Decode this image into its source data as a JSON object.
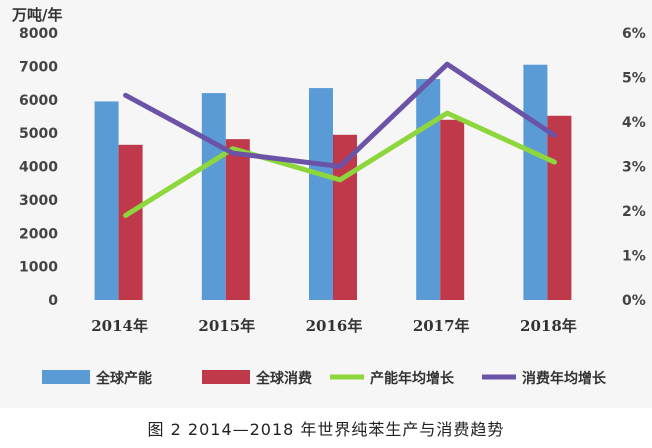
{
  "chart_data": {
    "type": "bar",
    "categories": [
      "2014年",
      "2015年",
      "2016年",
      "2017年",
      "2018年"
    ],
    "series": [
      {
        "name": "全球产能",
        "type": "bar",
        "axis": "left",
        "color": "#5b9bd5",
        "values": [
          5950,
          6200,
          6350,
          6620,
          7050
        ]
      },
      {
        "name": "全球消费",
        "type": "bar",
        "axis": "left",
        "color": "#c0394b",
        "values": [
          4650,
          4820,
          4950,
          5400,
          5520
        ]
      },
      {
        "name": "产能年均增长",
        "type": "line",
        "axis": "right",
        "color": "#8dd63b",
        "values": [
          1.9,
          3.4,
          2.7,
          4.2,
          3.1
        ]
      },
      {
        "name": "消费年均增长",
        "type": "line",
        "axis": "right",
        "color": "#6b54a8",
        "values": [
          4.6,
          3.3,
          3.0,
          5.3,
          3.7
        ]
      }
    ],
    "y_left": {
      "label": "万吨/年",
      "ylim": [
        0,
        8000
      ],
      "ticks": [
        "0",
        "1000",
        "2000",
        "3000",
        "4000",
        "5000",
        "6000",
        "7000",
        "8000"
      ]
    },
    "y_right": {
      "ylim": [
        0,
        6
      ],
      "ticks": [
        "0%",
        "1%",
        "2%",
        "3%",
        "4%",
        "5%",
        "6%"
      ]
    },
    "grid": false,
    "legend_position": "bottom"
  },
  "caption": "图 2  2014—2018 年世界纯苯生产与消费趋势"
}
